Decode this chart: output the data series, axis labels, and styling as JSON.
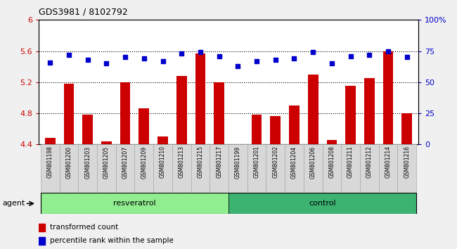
{
  "title": "GDS3981 / 8102792",
  "samples": [
    "GSM801198",
    "GSM801200",
    "GSM801203",
    "GSM801205",
    "GSM801207",
    "GSM801209",
    "GSM801210",
    "GSM801213",
    "GSM801215",
    "GSM801217",
    "GSM801199",
    "GSM801201",
    "GSM801202",
    "GSM801204",
    "GSM801206",
    "GSM801208",
    "GSM801211",
    "GSM801212",
    "GSM801214",
    "GSM801216"
  ],
  "transformed_count": [
    4.48,
    5.18,
    4.78,
    4.44,
    5.2,
    4.86,
    4.5,
    5.28,
    5.57,
    5.2,
    4.4,
    4.78,
    4.76,
    4.9,
    5.3,
    4.46,
    5.15,
    5.25,
    5.6,
    4.8
  ],
  "percentile_rank": [
    66,
    72,
    68,
    65,
    70,
    69,
    67,
    73,
    74,
    71,
    63,
    67,
    68,
    69,
    74,
    65,
    71,
    72,
    75,
    70
  ],
  "resveratrol_indices": [
    0,
    1,
    2,
    3,
    4,
    5,
    6,
    7,
    8,
    9
  ],
  "control_indices": [
    10,
    11,
    12,
    13,
    14,
    15,
    16,
    17,
    18,
    19
  ],
  "group_color_resveratrol": "#90EE90",
  "group_color_control": "#3CB371",
  "bar_color": "#CC0000",
  "dot_color": "#0000CC",
  "ymin": 4.4,
  "ymax": 6.0,
  "yticks_left": [
    4.4,
    4.8,
    5.2,
    5.6,
    6.0
  ],
  "ytick_labels_left": [
    "4.4",
    "4.8",
    "5.2",
    "5.6",
    "6"
  ],
  "yticks_right": [
    0,
    25,
    50,
    75,
    100
  ],
  "ytick_labels_right": [
    "0",
    "25",
    "50",
    "75",
    "100%"
  ],
  "grid_lines": [
    4.8,
    5.2,
    5.6
  ],
  "bar_width": 0.55,
  "background_color": "#f0f0f0",
  "plot_bg_color": "#ffffff",
  "tick_box_color": "#d8d8d8",
  "tick_box_edge_color": "#aaaaaa"
}
